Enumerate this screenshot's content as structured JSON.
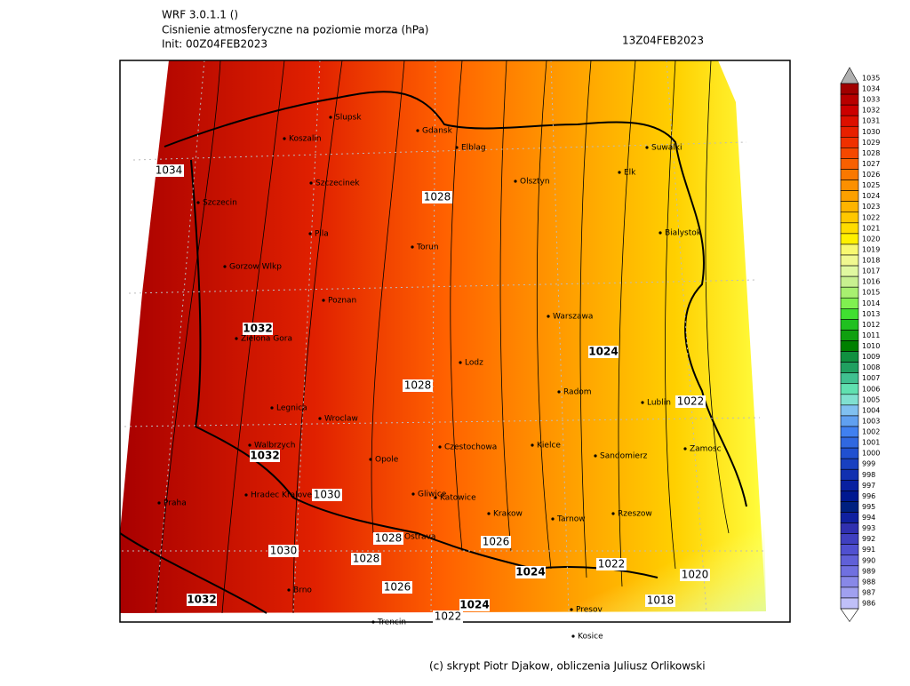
{
  "header": {
    "model": "WRF 3.0.1.1 ()",
    "title": "Cisnienie atmosferyczne na poziomie morza (hPa)",
    "init": "Init: 00Z04FEB2023",
    "valid": "13Z04FEB2023"
  },
  "map": {
    "cities": [
      "Slupsk",
      "Koszalin",
      "Gdansk",
      "Elblag",
      "Suwalki",
      "Szczecinek",
      "Olsztyn",
      "Elk",
      "Szczecin",
      "Pila",
      "Bialystok",
      "Torun",
      "Gorzow Wlkp",
      "Poznan",
      "Warszawa",
      "Zielona Gora",
      "Lodz",
      "Radom",
      "Lublin",
      "Legnica",
      "Wroclaw",
      "Walbrzych",
      "Czestochowa",
      "Kielce",
      "Zamosc",
      "Opole",
      "Sandomierz",
      "Hradec Kralove",
      "Gliwice",
      "Katowice",
      "Praha",
      "Krakow",
      "Tarnow",
      "Rzeszow",
      "Ostrava",
      "Brno",
      "Presov",
      "Trencin",
      "Kosice"
    ],
    "contour_labels": [
      1034,
      1028,
      1032,
      1028,
      1024,
      1022,
      1032,
      1030,
      1028,
      1026,
      1030,
      1028,
      1024,
      1022,
      1020,
      1026,
      1018,
      1032,
      1024,
      1022
    ]
  },
  "colorbar": {
    "levels": [
      1035,
      1034,
      1033,
      1032,
      1031,
      1030,
      1029,
      1028,
      1027,
      1026,
      1025,
      1024,
      1023,
      1022,
      1021,
      1020,
      1019,
      1018,
      1017,
      1016,
      1015,
      1014,
      1013,
      1012,
      1011,
      1010,
      1009,
      1008,
      1007,
      1006,
      1005,
      1004,
      1003,
      1002,
      1001,
      1000,
      999,
      998,
      997,
      996,
      995,
      994,
      993,
      992,
      991,
      990,
      989,
      988,
      987,
      986
    ],
    "colors": [
      "#b0b0b0",
      "#a00000",
      "#b80000",
      "#cc0000",
      "#dd1000",
      "#e82000",
      "#f03000",
      "#f54800",
      "#f86000",
      "#fa7800",
      "#fc9000",
      "#fda000",
      "#feb400",
      "#ffc800",
      "#ffdc00",
      "#fff000",
      "#f8f870",
      "#f0f890",
      "#e0f8a0",
      "#c8f090",
      "#a8f070",
      "#80f050",
      "#40e030",
      "#20c020",
      "#10a010",
      "#008000",
      "#109040",
      "#20a060",
      "#40c090",
      "#60e0b0",
      "#80e0d0",
      "#80c0f0",
      "#60a0f0",
      "#4080f0",
      "#3068e0",
      "#2050d0",
      "#1840c0",
      "#1030b0",
      "#0820a0",
      "#001890",
      "#002080",
      "#1020a0",
      "#3030b0",
      "#4040c0",
      "#5050d0",
      "#6060d8",
      "#7070e0",
      "#8888e8",
      "#a0a0f0",
      "#c0c0f8"
    ]
  },
  "footer": "(c) skrypt Piotr Djakow, obliczenia Juliusz Orlikowski"
}
